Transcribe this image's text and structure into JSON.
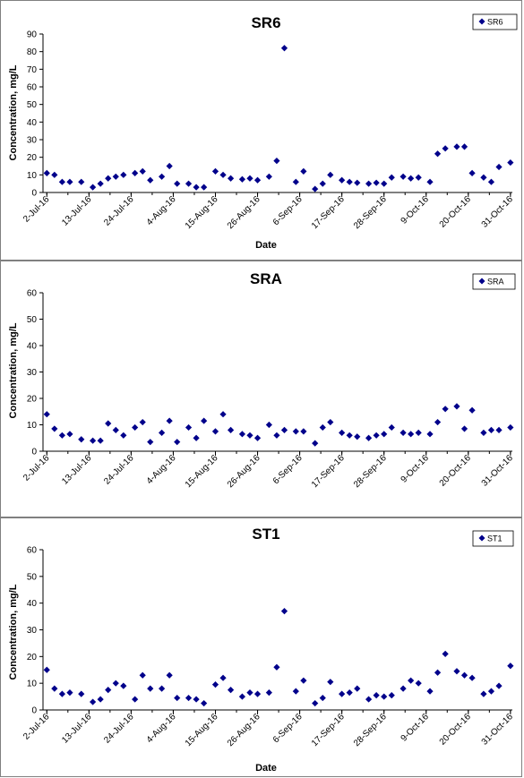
{
  "chart_data": [
    {
      "type": "scatter",
      "title": "SR6",
      "ylabel": "Concentration, mg/L",
      "xlabel": "Date",
      "ylim": [
        0,
        90
      ],
      "yticks": [
        0,
        10,
        20,
        30,
        40,
        50,
        60,
        70,
        80,
        90
      ],
      "xticks": [
        "2-Jul-16",
        "13-Jul-16",
        "24-Jul-16",
        "4-Aug-16",
        "15-Aug-16",
        "26-Aug-16",
        "6-Sep-16",
        "17-Sep-16",
        "28-Sep-16",
        "9-Oct-16",
        "20-Oct-16",
        "31-Oct-16"
      ],
      "legend": "top-right",
      "color": "#00008B",
      "series": [
        {
          "name": "SR6",
          "x": [
            "2-Jul-16",
            "4-Jul-16",
            "6-Jul-16",
            "8-Jul-16",
            "11-Jul-16",
            "14-Jul-16",
            "16-Jul-16",
            "18-Jul-16",
            "20-Jul-16",
            "22-Jul-16",
            "25-Jul-16",
            "27-Jul-16",
            "29-Jul-16",
            "1-Aug-16",
            "3-Aug-16",
            "5-Aug-16",
            "8-Aug-16",
            "10-Aug-16",
            "12-Aug-16",
            "15-Aug-16",
            "17-Aug-16",
            "19-Aug-16",
            "22-Aug-16",
            "24-Aug-16",
            "26-Aug-16",
            "29-Aug-16",
            "31-Aug-16",
            "2-Sep-16",
            "5-Sep-16",
            "7-Sep-16",
            "10-Sep-16",
            "12-Sep-16",
            "14-Sep-16",
            "17-Sep-16",
            "19-Sep-16",
            "21-Sep-16",
            "24-Sep-16",
            "26-Sep-16",
            "28-Sep-16",
            "30-Sep-16",
            "3-Oct-16",
            "5-Oct-16",
            "7-Oct-16",
            "10-Oct-16",
            "12-Oct-16",
            "14-Oct-16",
            "17-Oct-16",
            "19-Oct-16",
            "21-Oct-16",
            "24-Oct-16",
            "26-Oct-16",
            "28-Oct-16",
            "31-Oct-16"
          ],
          "y": [
            11,
            10,
            6,
            6,
            6,
            3,
            5,
            8,
            9,
            10,
            11,
            12,
            7,
            9,
            15,
            5,
            5,
            3,
            3,
            12,
            10,
            8,
            7.5,
            8,
            7,
            9,
            18,
            82,
            6,
            12,
            2,
            5,
            10,
            7,
            6,
            5.5,
            5,
            5.5,
            5,
            8.5,
            9,
            8,
            8.5,
            6,
            22,
            25,
            26,
            26,
            11,
            8.5,
            6,
            14.5,
            17
          ]
        }
      ]
    },
    {
      "type": "scatter",
      "title": "SRA",
      "ylabel": "Concentration, mg/L",
      "xlabel": "",
      "ylim": [
        0,
        60
      ],
      "yticks": [
        0,
        10,
        20,
        30,
        40,
        50,
        60
      ],
      "xticks": [
        "2-Jul-16",
        "13-Jul-16",
        "24-Jul-16",
        "4-Aug-16",
        "15-Aug-16",
        "26-Aug-16",
        "6-Sep-16",
        "17-Sep-16",
        "28-Sep-16",
        "9-Oct-16",
        "20-Oct-16",
        "31-Oct-16"
      ],
      "legend": "top-right",
      "color": "#00008B",
      "series": [
        {
          "name": "SRA",
          "x": [
            "2-Jul-16",
            "4-Jul-16",
            "6-Jul-16",
            "8-Jul-16",
            "11-Jul-16",
            "14-Jul-16",
            "16-Jul-16",
            "18-Jul-16",
            "20-Jul-16",
            "22-Jul-16",
            "25-Jul-16",
            "27-Jul-16",
            "29-Jul-16",
            "1-Aug-16",
            "3-Aug-16",
            "5-Aug-16",
            "8-Aug-16",
            "10-Aug-16",
            "12-Aug-16",
            "15-Aug-16",
            "17-Aug-16",
            "19-Aug-16",
            "22-Aug-16",
            "24-Aug-16",
            "26-Aug-16",
            "29-Aug-16",
            "31-Aug-16",
            "2-Sep-16",
            "5-Sep-16",
            "7-Sep-16",
            "10-Sep-16",
            "12-Sep-16",
            "14-Sep-16",
            "17-Sep-16",
            "19-Sep-16",
            "21-Sep-16",
            "24-Sep-16",
            "26-Sep-16",
            "28-Sep-16",
            "30-Sep-16",
            "3-Oct-16",
            "5-Oct-16",
            "7-Oct-16",
            "10-Oct-16",
            "12-Oct-16",
            "14-Oct-16",
            "17-Oct-16",
            "19-Oct-16",
            "21-Oct-16",
            "24-Oct-16",
            "26-Oct-16",
            "28-Oct-16",
            "31-Oct-16"
          ],
          "y": [
            14,
            8.5,
            6,
            6.5,
            4.5,
            4,
            4,
            10.5,
            8,
            6,
            9,
            11,
            3.5,
            7,
            11.5,
            3.5,
            9,
            5,
            11.5,
            7.5,
            14,
            8,
            6.5,
            6,
            5,
            10,
            6,
            8,
            7.5,
            7.5,
            3,
            9,
            11,
            7,
            6,
            5.5,
            5,
            6,
            6.5,
            9,
            7,
            6.5,
            7,
            6.5,
            11,
            16,
            17,
            8.5,
            15.5,
            7,
            8,
            8,
            9
          ]
        }
      ]
    },
    {
      "type": "scatter",
      "title": "ST1",
      "ylabel": "Concentration, mg/L",
      "xlabel": "Date",
      "ylim": [
        0,
        60
      ],
      "yticks": [
        0,
        10,
        20,
        30,
        40,
        50,
        60
      ],
      "xticks": [
        "2-Jul-16",
        "13-Jul-16",
        "24-Jul-16",
        "4-Aug-16",
        "15-Aug-16",
        "26-Aug-16",
        "6-Sep-16",
        "17-Sep-16",
        "28-Sep-16",
        "9-Oct-16",
        "20-Oct-16",
        "31-Oct-16"
      ],
      "legend": "top-right",
      "color": "#00008B",
      "series": [
        {
          "name": "ST1",
          "x": [
            "2-Jul-16",
            "4-Jul-16",
            "6-Jul-16",
            "8-Jul-16",
            "11-Jul-16",
            "14-Jul-16",
            "16-Jul-16",
            "18-Jul-16",
            "20-Jul-16",
            "22-Jul-16",
            "25-Jul-16",
            "27-Jul-16",
            "29-Jul-16",
            "1-Aug-16",
            "3-Aug-16",
            "5-Aug-16",
            "8-Aug-16",
            "10-Aug-16",
            "12-Aug-16",
            "15-Aug-16",
            "17-Aug-16",
            "19-Aug-16",
            "22-Aug-16",
            "24-Aug-16",
            "26-Aug-16",
            "29-Aug-16",
            "31-Aug-16",
            "2-Sep-16",
            "5-Sep-16",
            "7-Sep-16",
            "10-Sep-16",
            "12-Sep-16",
            "14-Sep-16",
            "17-Sep-16",
            "19-Sep-16",
            "21-Sep-16",
            "24-Sep-16",
            "26-Sep-16",
            "28-Sep-16",
            "30-Sep-16",
            "3-Oct-16",
            "5-Oct-16",
            "7-Oct-16",
            "10-Oct-16",
            "12-Oct-16",
            "14-Oct-16",
            "17-Oct-16",
            "19-Oct-16",
            "21-Oct-16",
            "24-Oct-16",
            "26-Oct-16",
            "28-Oct-16",
            "31-Oct-16"
          ],
          "y": [
            15,
            8,
            6,
            6.5,
            6,
            3,
            4,
            7.5,
            10,
            9,
            4,
            13,
            8,
            8,
            13,
            4.5,
            4.5,
            4,
            2.5,
            9.5,
            12,
            7.5,
            5,
            6.5,
            6,
            6.5,
            16,
            37,
            7,
            11,
            2.5,
            4.5,
            10.5,
            6,
            6.5,
            8,
            4,
            5.5,
            5,
            5.5,
            8,
            11,
            10,
            7,
            14,
            21,
            14.5,
            13,
            12,
            6,
            7,
            9,
            16.5
          ]
        }
      ]
    }
  ]
}
